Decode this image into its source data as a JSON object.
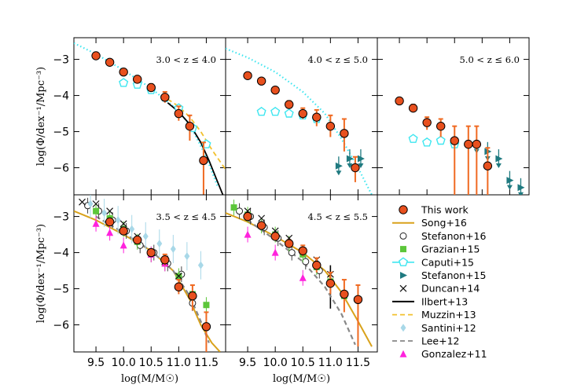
{
  "colors": {
    "this_work_fill": "#e8501e",
    "this_work_err": "#f06a22",
    "song": "#d9a21b",
    "stefanon16": "#222222",
    "grazian": "#5cc63a",
    "caputi": "#3fe6f0",
    "stefanon15": "#1f7a80",
    "duncan": "#111111",
    "ilbert": "#000000",
    "muzzin": "#f2c12e",
    "santini": "#a8d8e8",
    "lee": "#888888",
    "gonzalez": "#ff22dd"
  },
  "chart_data": [
    {
      "type": "scatter",
      "panel": "top-left",
      "annotation": "3.0 < z ≤ 4.0",
      "ylabel": "log(Φ/dex⁻¹/Mpc⁻³)",
      "xlim": [
        9.1,
        11.85
      ],
      "ylim": [
        -6.75,
        -2.4
      ],
      "yticks": [
        -3,
        -4,
        -5,
        -6
      ],
      "series": [
        {
          "name": "This work",
          "x": [
            9.5,
            9.75,
            10.0,
            10.25,
            10.5,
            10.75,
            11.0,
            11.2,
            11.45
          ],
          "y": [
            -2.9,
            -3.08,
            -3.35,
            -3.55,
            -3.78,
            -4.05,
            -4.5,
            -4.85,
            -5.8
          ],
          "yerr_lo": [
            0.05,
            0.05,
            0.06,
            0.07,
            0.1,
            0.15,
            0.2,
            0.4,
            1.5
          ],
          "yerr_hi": [
            0.05,
            0.05,
            0.06,
            0.07,
            0.1,
            0.15,
            0.2,
            0.3,
            0.5
          ]
        },
        {
          "name": "Caputi+15",
          "x": [
            10.0,
            10.25,
            10.5,
            10.75,
            11.0,
            11.25,
            11.5
          ],
          "y": [
            -3.65,
            -3.7,
            -3.85,
            -4.05,
            -4.35,
            -4.9,
            -5.35
          ]
        },
        {
          "name": "Caputi+15 fit",
          "x": [
            9.1,
            9.5,
            10.0,
            10.5,
            10.9,
            11.2,
            11.5,
            11.7
          ],
          "y": [
            -2.55,
            -2.85,
            -3.3,
            -3.8,
            -4.3,
            -4.8,
            -5.7,
            -6.5
          ]
        },
        {
          "name": "Ilbert+13",
          "x": [
            10.8,
            11.0,
            11.2,
            11.4,
            11.55,
            11.68,
            11.8
          ],
          "y": [
            -4.2,
            -4.45,
            -4.8,
            -5.3,
            -5.8,
            -6.3,
            -6.75
          ]
        },
        {
          "name": "Muzzin+13",
          "x": [
            10.8,
            11.0,
            11.2,
            11.4,
            11.6,
            11.85
          ],
          "y": [
            -4.1,
            -4.3,
            -4.6,
            -5.0,
            -5.5,
            -6.05
          ]
        }
      ]
    },
    {
      "type": "scatter",
      "panel": "top-middle",
      "annotation": "4.0 < z ≤ 5.0",
      "xlim": [
        9.1,
        11.85
      ],
      "ylim": [
        -6.75,
        -2.4
      ],
      "series": [
        {
          "name": "This work",
          "x": [
            9.5,
            9.75,
            10.0,
            10.25,
            10.5,
            10.75,
            11.0,
            11.25,
            11.45
          ],
          "y": [
            -3.45,
            -3.6,
            -3.85,
            -4.25,
            -4.5,
            -4.6,
            -4.85,
            -5.05,
            -6.0
          ],
          "yerr_lo": [
            0.05,
            0.06,
            0.07,
            0.1,
            0.15,
            0.25,
            0.3,
            0.5,
            0.4
          ],
          "yerr_hi": [
            0.05,
            0.06,
            0.07,
            0.1,
            0.15,
            0.2,
            0.3,
            0.4,
            0.3
          ]
        },
        {
          "name": "Caputi+15",
          "x": [
            9.75,
            10.0,
            10.25,
            10.5,
            10.75
          ],
          "y": [
            -4.45,
            -4.45,
            -4.5,
            -4.55,
            -4.65
          ]
        },
        {
          "name": "Caputi+15 fit",
          "x": [
            9.1,
            9.5,
            10.0,
            10.5,
            10.9,
            11.2,
            11.5,
            11.75
          ],
          "y": [
            -2.7,
            -2.95,
            -3.35,
            -3.9,
            -4.5,
            -5.2,
            -6.0,
            -6.75
          ]
        },
        {
          "name": "Stefanon+15",
          "x": [
            11.15,
            11.35,
            11.55
          ],
          "y": [
            -5.95,
            -5.75,
            -5.75
          ]
        }
      ]
    },
    {
      "type": "scatter",
      "panel": "top-right",
      "annotation": "5.0 < z ≤ 6.0",
      "xlim": [
        9.1,
        11.85
      ],
      "ylim": [
        -6.75,
        -2.4
      ],
      "series": [
        {
          "name": "This work",
          "x": [
            9.5,
            9.75,
            10.0,
            10.25,
            10.5,
            10.75,
            10.9,
            11.1
          ],
          "y": [
            -4.15,
            -4.35,
            -4.75,
            -4.85,
            -5.25,
            -5.35,
            -5.35,
            -5.95
          ],
          "yerr_lo": [
            0.06,
            0.1,
            0.2,
            0.3,
            1.8,
            1.8,
            1.8,
            1.0
          ],
          "yerr_hi": [
            0.06,
            0.1,
            0.15,
            0.2,
            0.4,
            0.5,
            0.5,
            0.5
          ]
        },
        {
          "name": "Caputi+15",
          "x": [
            9.75,
            10.0,
            10.25,
            10.5
          ],
          "y": [
            -5.2,
            -5.3,
            -5.25,
            -5.35
          ]
        },
        {
          "name": "Stefanon+15",
          "x": [
            10.9,
            11.1,
            11.3,
            11.5,
            11.7
          ],
          "y": [
            -5.35,
            -5.55,
            -5.75,
            -6.35,
            -6.55
          ]
        }
      ]
    },
    {
      "type": "scatter",
      "panel": "bottom-left",
      "annotation": "3.5 < z ≤ 4.5",
      "ylabel": "log(Φ/dex⁻¹/Mpc⁻³)",
      "xlabel": "log(M/M☉)",
      "xlim": [
        9.1,
        11.85
      ],
      "ylim": [
        -6.75,
        -2.4
      ],
      "xticks": [
        "9.5",
        "10.0",
        "10.5",
        "11.0",
        "11.5"
      ],
      "series": [
        {
          "name": "This work",
          "x": [
            9.75,
            10.0,
            10.25,
            10.5,
            10.75,
            11.0,
            11.25,
            11.5
          ],
          "y": [
            -3.15,
            -3.4,
            -3.65,
            -4.0,
            -4.2,
            -4.95,
            -5.2,
            -6.05
          ],
          "yerr_lo": [
            0.05,
            0.06,
            0.07,
            0.1,
            0.15,
            0.2,
            0.4,
            0.7
          ],
          "yerr_hi": [
            0.05,
            0.06,
            0.07,
            0.1,
            0.15,
            0.2,
            0.3,
            0.4
          ]
        },
        {
          "name": "Song+16",
          "x": [
            9.1,
            9.5,
            10.0,
            10.5,
            10.9,
            11.2,
            11.4,
            11.6,
            11.75
          ],
          "y": [
            -2.85,
            -3.1,
            -3.5,
            -3.95,
            -4.5,
            -5.3,
            -6.0,
            -6.5,
            -6.75
          ]
        },
        {
          "name": "Stefanon+16",
          "x": [
            9.35,
            9.55,
            9.8,
            10.05,
            10.3,
            10.55,
            10.8,
            11.05,
            11.25
          ],
          "y": [
            -2.7,
            -2.85,
            -3.1,
            -3.4,
            -3.8,
            -4.0,
            -4.3,
            -4.6,
            -5.4
          ]
        },
        {
          "name": "Grazian+15",
          "x": [
            9.5,
            9.75,
            10.0,
            10.25,
            10.5,
            10.75,
            11.0,
            11.25,
            11.5
          ],
          "y": [
            -2.85,
            -3.05,
            -3.35,
            -3.7,
            -4.05,
            -4.3,
            -4.65,
            -5.15,
            -5.45
          ]
        },
        {
          "name": "Duncan+14",
          "x": [
            9.25,
            9.5,
            9.75,
            10.0,
            10.25,
            10.5,
            10.75,
            11.0
          ],
          "y": [
            -2.6,
            -2.65,
            -2.85,
            -3.2,
            -3.55,
            -4.0,
            -4.25,
            -4.65
          ]
        },
        {
          "name": "Santini+12",
          "x": [
            9.4,
            9.65,
            9.9,
            10.15,
            10.4,
            10.65,
            10.9,
            11.15,
            11.4
          ],
          "y": [
            -2.65,
            -2.9,
            -3.1,
            -3.35,
            -3.55,
            -3.75,
            -3.9,
            -4.1,
            -4.35
          ]
        },
        {
          "name": "Lee+12",
          "x": [
            9.5,
            10.0,
            10.5,
            10.9,
            11.2,
            11.4,
            11.55
          ],
          "y": [
            -3.0,
            -3.45,
            -3.95,
            -4.5,
            -5.2,
            -5.9,
            -6.5
          ]
        },
        {
          "name": "Gonzalez+11",
          "x": [
            9.5,
            9.75,
            10.0,
            10.5,
            10.75
          ],
          "y": [
            -3.2,
            -3.45,
            -3.8,
            -4.05,
            -4.3
          ]
        }
      ]
    },
    {
      "type": "scatter",
      "panel": "bottom-middle",
      "annotation": "4.5 < z ≤ 5.5",
      "xlabel": "log(M/M☉)",
      "xlim": [
        9.1,
        11.85
      ],
      "ylim": [
        -6.75,
        -2.4
      ],
      "xticks": [
        "9.5",
        "10.0",
        "10.5",
        "11.0",
        "11.5"
      ],
      "series": [
        {
          "name": "This work",
          "x": [
            9.5,
            9.75,
            10.0,
            10.25,
            10.5,
            10.75,
            11.0,
            11.25,
            11.5
          ],
          "y": [
            -3.0,
            -3.25,
            -3.55,
            -3.75,
            -3.95,
            -4.35,
            -4.85,
            -5.15,
            -5.3
          ],
          "yerr_lo": [
            0.05,
            0.06,
            0.07,
            0.1,
            0.15,
            0.2,
            0.3,
            0.5,
            1.3
          ],
          "yerr_hi": [
            0.05,
            0.06,
            0.07,
            0.1,
            0.15,
            0.2,
            0.3,
            0.4,
            0.4
          ]
        },
        {
          "name": "Song+16",
          "x": [
            9.1,
            9.5,
            10.0,
            10.5,
            10.9,
            11.2,
            11.5,
            11.75
          ],
          "y": [
            -2.9,
            -3.15,
            -3.55,
            -4.0,
            -4.5,
            -5.1,
            -5.9,
            -6.6
          ]
        },
        {
          "name": "Stefanon+16",
          "x": [
            9.35,
            9.55,
            9.8,
            10.05,
            10.3,
            10.55,
            10.8
          ],
          "y": [
            -2.85,
            -3.0,
            -3.3,
            -3.6,
            -4.0,
            -4.25,
            -4.5
          ]
        },
        {
          "name": "Grazian+15",
          "x": [
            9.25,
            9.5,
            9.75,
            10.0,
            10.25,
            10.5,
            10.75,
            11.0,
            11.25
          ],
          "y": [
            -2.75,
            -2.95,
            -3.25,
            -3.5,
            -3.75,
            -4.05,
            -4.4,
            -4.8,
            -5.2
          ]
        },
        {
          "name": "Duncan+14",
          "x": [
            9.5,
            9.75,
            10.0,
            10.25,
            10.5,
            10.75,
            11.0
          ],
          "y": [
            -2.85,
            -3.05,
            -3.4,
            -3.6,
            -3.95,
            -4.2,
            -4.6
          ]
        },
        {
          "name": "Ilbert+13",
          "x": [
            11.0,
            11.0
          ],
          "y": [
            -4.35,
            -5.55
          ]
        },
        {
          "name": "Lee+12",
          "x": [
            9.5,
            10.0,
            10.5,
            10.9,
            11.2,
            11.45
          ],
          "y": [
            -3.1,
            -3.65,
            -4.25,
            -4.95,
            -5.7,
            -6.55
          ]
        },
        {
          "name": "Gonzalez+11",
          "x": [
            9.5,
            10.0,
            10.5
          ],
          "y": [
            -3.5,
            -4.0,
            -4.7
          ]
        }
      ]
    }
  ],
  "legend": {
    "items": [
      "This work",
      "Song+16",
      "Stefanon+16",
      "Grazian+15",
      "Caputi+15",
      "Stefanon+15",
      "Duncan+14",
      "Ilbert+13",
      "Muzzin+13",
      "Santini+12",
      "Lee+12",
      "Gonzalez+11"
    ]
  },
  "labels": {
    "ylabel": "log(Φ/dex⁻¹/Mpc⁻³)",
    "xlabel": "log(M/M☉)",
    "yticks": [
      "−3",
      "−4",
      "−5",
      "−6"
    ],
    "xticks": [
      "9.5",
      "10.0",
      "10.5",
      "11.0",
      "11.5"
    ]
  }
}
